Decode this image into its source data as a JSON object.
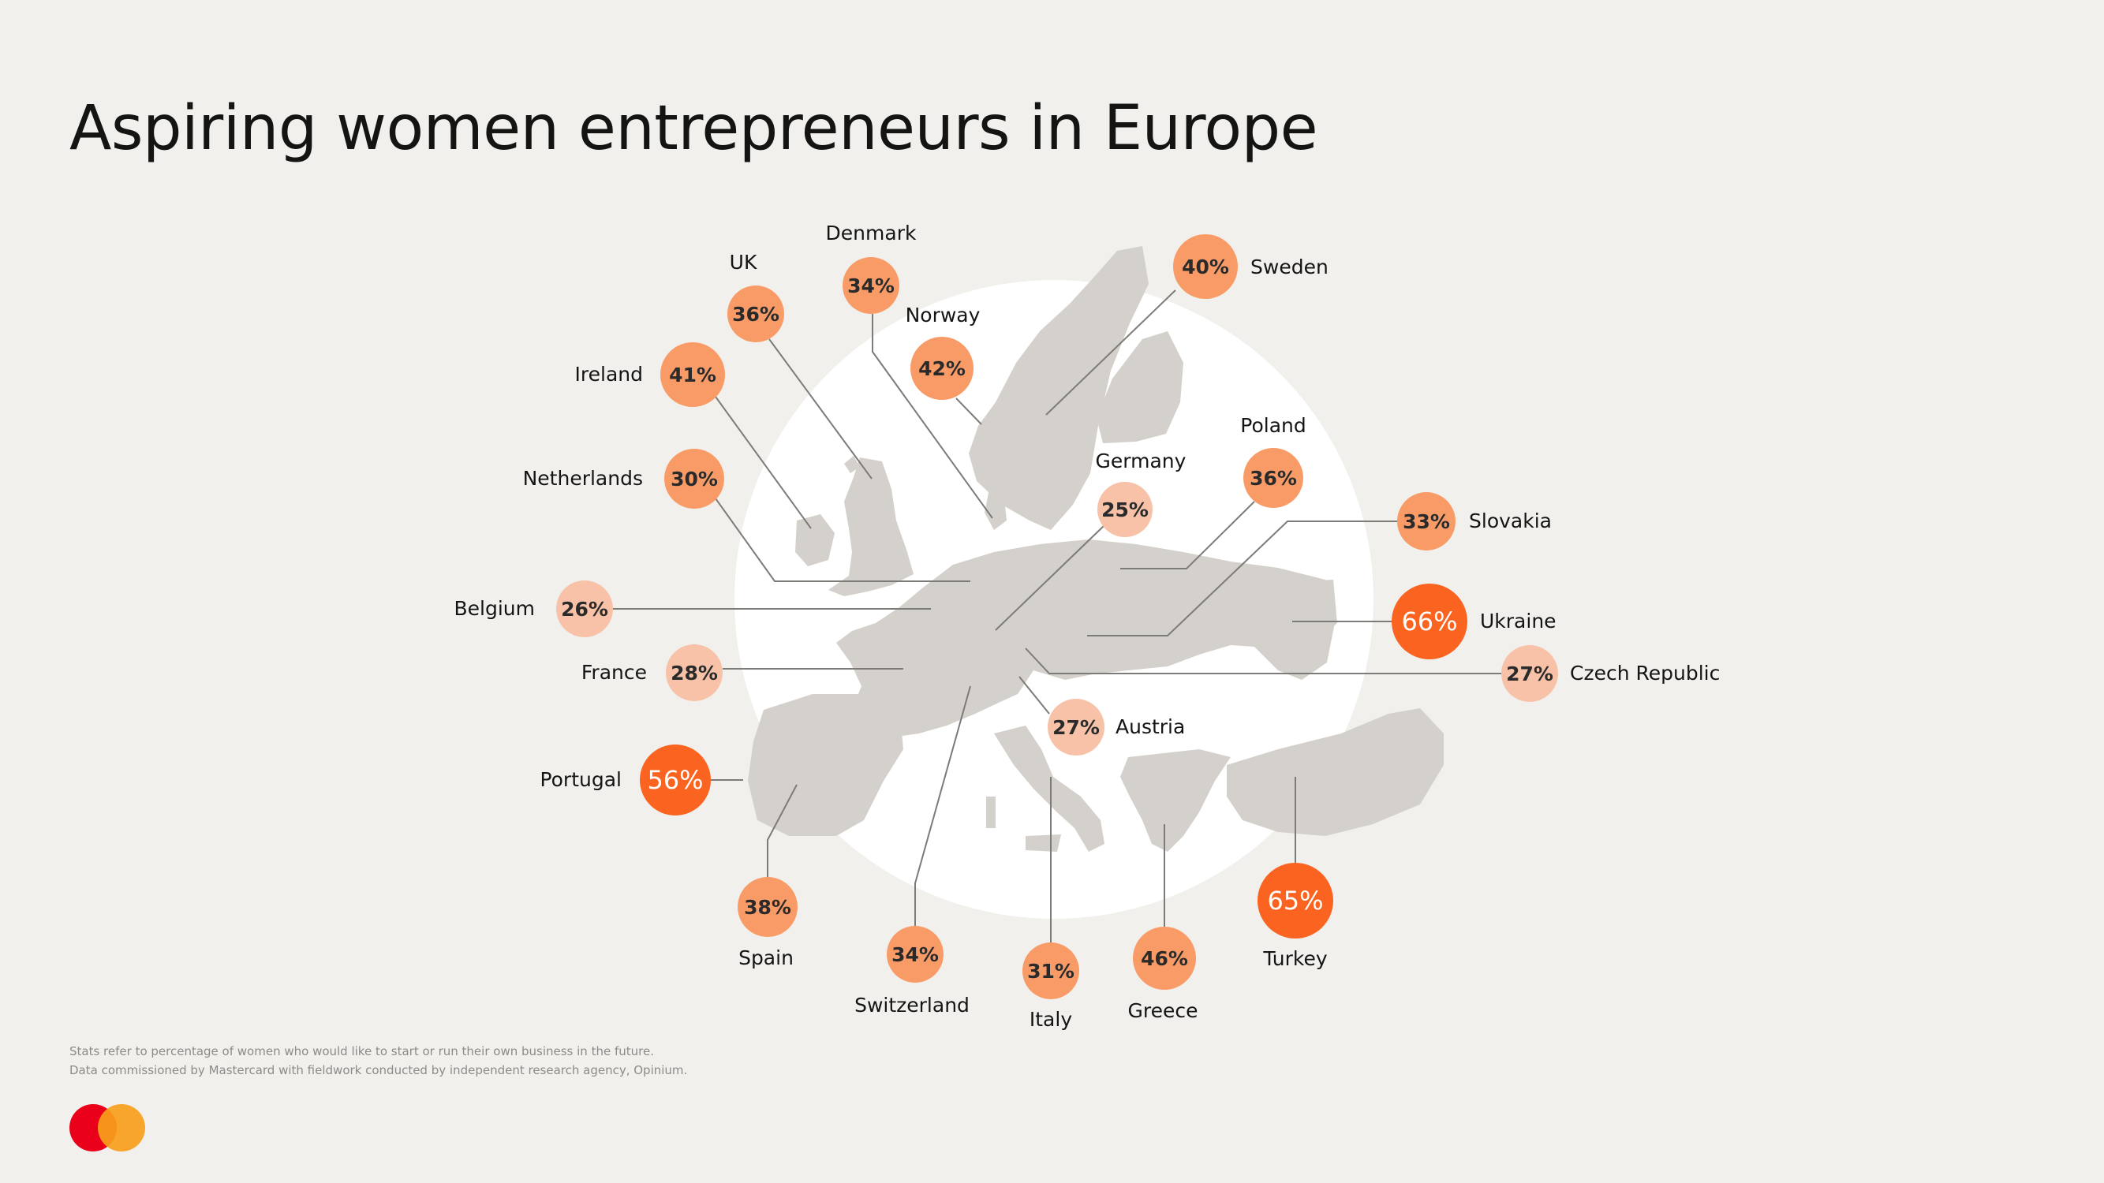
{
  "title": "Aspiring women entrepreneurs in Europe",
  "map": {
    "backdrop_color": "#ffffff",
    "land_color": "#d4d0cb",
    "leader_color": "#7d7b78"
  },
  "colors": {
    "low": "#f7c2a7",
    "mid": "#f99b67",
    "high": "#fb6420"
  },
  "countries": [
    {
      "id": "uk",
      "name": "UK",
      "value": "36%",
      "tier": "mid"
    },
    {
      "id": "denmark",
      "name": "Denmark",
      "value": "34%",
      "tier": "mid"
    },
    {
      "id": "norway",
      "name": "Norway",
      "value": "42%",
      "tier": "mid"
    },
    {
      "id": "sweden",
      "name": "Sweden",
      "value": "40%",
      "tier": "mid"
    },
    {
      "id": "ireland",
      "name": "Ireland",
      "value": "41%",
      "tier": "mid"
    },
    {
      "id": "netherlands",
      "name": "Netherlands",
      "value": "30%",
      "tier": "mid"
    },
    {
      "id": "germany",
      "name": "Germany",
      "value": "25%",
      "tier": "low"
    },
    {
      "id": "poland",
      "name": "Poland",
      "value": "36%",
      "tier": "mid"
    },
    {
      "id": "slovakia",
      "name": "Slovakia",
      "value": "33%",
      "tier": "mid"
    },
    {
      "id": "belgium",
      "name": "Belgium",
      "value": "26%",
      "tier": "low"
    },
    {
      "id": "ukraine",
      "name": "Ukraine",
      "value": "66%",
      "tier": "high"
    },
    {
      "id": "france",
      "name": "France",
      "value": "28%",
      "tier": "low"
    },
    {
      "id": "czech",
      "name": "Czech Republic",
      "value": "27%",
      "tier": "low"
    },
    {
      "id": "austria",
      "name": "Austria",
      "value": "27%",
      "tier": "low"
    },
    {
      "id": "portugal",
      "name": "Portugal",
      "value": "56%",
      "tier": "high"
    },
    {
      "id": "spain",
      "name": "Spain",
      "value": "38%",
      "tier": "mid"
    },
    {
      "id": "switzerland",
      "name": "Switzerland",
      "value": "34%",
      "tier": "mid"
    },
    {
      "id": "italy",
      "name": "Italy",
      "value": "31%",
      "tier": "mid"
    },
    {
      "id": "greece",
      "name": "Greece",
      "value": "46%",
      "tier": "mid"
    },
    {
      "id": "turkey",
      "name": "Turkey",
      "value": "65%",
      "tier": "high"
    }
  ],
  "footnote": [
    "Stats refer to percentage of women who would like to start or run their own business in the future.",
    "Data commissioned by Mastercard with fieldwork conducted by independent research agency, Opinium."
  ],
  "logo": {
    "red": "#eb001b",
    "yellow": "#f79e1b",
    "overlap": "#ff5f00"
  }
}
